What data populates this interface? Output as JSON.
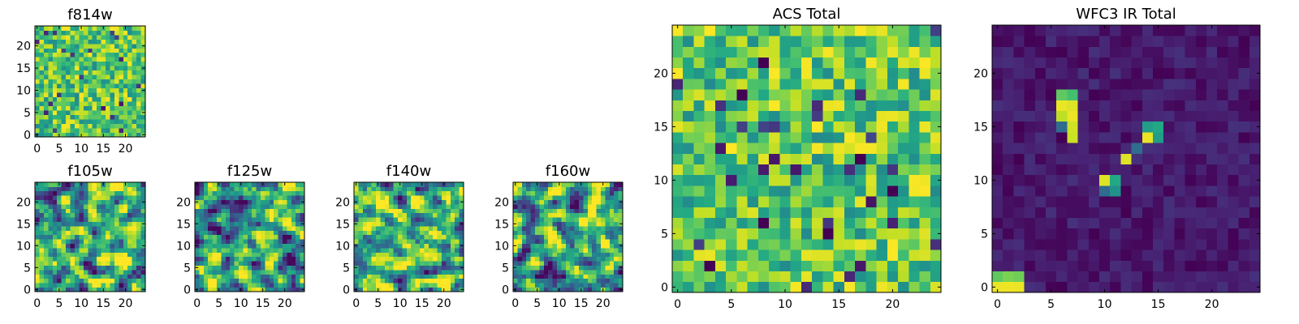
{
  "chart_data": [
    {
      "id": "f814w",
      "type": "heatmap",
      "title": "f814w",
      "grid_size": 25,
      "xlim": [
        -0.5,
        24.5
      ],
      "ylim": [
        -0.5,
        24.5
      ],
      "xticks": [
        0,
        5,
        10,
        15,
        20
      ],
      "yticks": [
        0,
        5,
        10,
        15,
        20
      ],
      "colormap": "viridis",
      "pattern": "noise-high",
      "hotspots": []
    },
    {
      "id": "f105w",
      "type": "heatmap",
      "title": "f105w",
      "grid_size": 25,
      "xlim": [
        -0.5,
        24.5
      ],
      "ylim": [
        -0.5,
        24.5
      ],
      "xticks": [
        0,
        5,
        10,
        15,
        20
      ],
      "yticks": [
        0,
        5,
        10,
        15,
        20
      ],
      "colormap": "viridis",
      "pattern": "smooth-noise",
      "hotspots": []
    },
    {
      "id": "f125w",
      "type": "heatmap",
      "title": "f125w",
      "grid_size": 25,
      "xlim": [
        -0.5,
        24.5
      ],
      "ylim": [
        -0.5,
        24.5
      ],
      "xticks": [
        0,
        5,
        10,
        15,
        20
      ],
      "yticks": [
        0,
        5,
        10,
        15,
        20
      ],
      "colormap": "viridis",
      "pattern": "smooth-noise",
      "hotspots": []
    },
    {
      "id": "f140w",
      "type": "heatmap",
      "title": "f140w",
      "grid_size": 25,
      "xlim": [
        -0.5,
        24.5
      ],
      "ylim": [
        -0.5,
        24.5
      ],
      "xticks": [
        0,
        5,
        10,
        15,
        20
      ],
      "yticks": [
        0,
        5,
        10,
        15,
        20
      ],
      "colormap": "viridis",
      "pattern": "smooth-noise",
      "hotspots": []
    },
    {
      "id": "f160w",
      "type": "heatmap",
      "title": "f160w",
      "grid_size": 25,
      "xlim": [
        -0.5,
        24.5
      ],
      "ylim": [
        -0.5,
        24.5
      ],
      "xticks": [
        0,
        5,
        10,
        15,
        20
      ],
      "yticks": [
        0,
        5,
        10,
        15,
        20
      ],
      "colormap": "viridis",
      "pattern": "smooth-noise",
      "hotspots": []
    },
    {
      "id": "acs_total",
      "type": "heatmap",
      "title": "ACS Total",
      "grid_size": 25,
      "xlim": [
        -0.5,
        24.5
      ],
      "ylim": [
        -0.5,
        24.5
      ],
      "xticks": [
        0,
        5,
        10,
        15,
        20
      ],
      "yticks": [
        0,
        5,
        10,
        15,
        20
      ],
      "colormap": "viridis",
      "pattern": "noise-high",
      "hotspots": [
        {
          "x": 8,
          "y": 21,
          "v": 0.0
        },
        {
          "x": 6,
          "y": 18,
          "v": 0.0
        },
        {
          "x": 17,
          "y": 12,
          "v": 0.0
        },
        {
          "x": 20,
          "y": 9,
          "v": 0.0
        },
        {
          "x": 18,
          "y": 8,
          "v": 0.05
        },
        {
          "x": 8,
          "y": 6,
          "v": 0.0
        },
        {
          "x": 14,
          "y": 5,
          "v": 0.0
        },
        {
          "x": 3,
          "y": 2,
          "v": 0.0
        }
      ]
    },
    {
      "id": "wfc3_ir_total",
      "type": "heatmap",
      "title": "WFC3 IR Total",
      "grid_size": 25,
      "xlim": [
        -0.5,
        24.5
      ],
      "ylim": [
        -0.5,
        24.5
      ],
      "xticks": [
        0,
        5,
        10,
        15,
        20
      ],
      "yticks": [
        0,
        5,
        10,
        15,
        20
      ],
      "colormap": "viridis",
      "pattern": "noise-low",
      "hotspots": [
        {
          "x": 6,
          "y": 18,
          "v": 0.75
        },
        {
          "x": 7,
          "y": 18,
          "v": 0.7
        },
        {
          "x": 6,
          "y": 17,
          "v": 0.97
        },
        {
          "x": 7,
          "y": 17,
          "v": 0.95
        },
        {
          "x": 6,
          "y": 16,
          "v": 0.9
        },
        {
          "x": 7,
          "y": 16,
          "v": 0.97
        },
        {
          "x": 7,
          "y": 15,
          "v": 0.93
        },
        {
          "x": 6,
          "y": 15,
          "v": 0.35
        },
        {
          "x": 7,
          "y": 14,
          "v": 0.92
        },
        {
          "x": 14,
          "y": 15,
          "v": 0.55
        },
        {
          "x": 15,
          "y": 15,
          "v": 0.6
        },
        {
          "x": 14,
          "y": 14,
          "v": 0.97
        },
        {
          "x": 15,
          "y": 14,
          "v": 0.55
        },
        {
          "x": 13,
          "y": 13,
          "v": 0.35
        },
        {
          "x": 12,
          "y": 12,
          "v": 0.95
        },
        {
          "x": 10,
          "y": 10,
          "v": 0.95
        },
        {
          "x": 11,
          "y": 10,
          "v": 0.6
        },
        {
          "x": 10,
          "y": 9,
          "v": 0.35
        },
        {
          "x": 11,
          "y": 9,
          "v": 0.5
        },
        {
          "x": 0,
          "y": 1,
          "v": 0.75
        },
        {
          "x": 1,
          "y": 1,
          "v": 0.8
        },
        {
          "x": 2,
          "y": 1,
          "v": 0.78
        },
        {
          "x": 0,
          "y": 0,
          "v": 0.97
        },
        {
          "x": 1,
          "y": 0,
          "v": 0.98
        },
        {
          "x": 2,
          "y": 0,
          "v": 0.97
        }
      ]
    }
  ]
}
